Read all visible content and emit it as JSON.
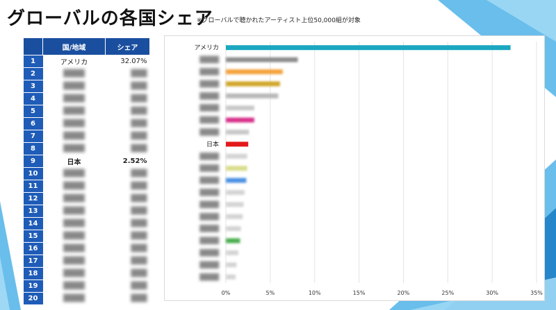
{
  "header": {
    "title": "グローバルの各国シェア",
    "note": "※グローバルで聴かれたアーティスト上位50,000組が対象"
  },
  "table": {
    "headers": [
      "",
      "国/地域",
      "シェア"
    ],
    "rows": [
      {
        "rank": "1",
        "country": "アメリカ",
        "share": "32.07%",
        "visible": true,
        "bold": false
      },
      {
        "rank": "2",
        "country": "",
        "share": "",
        "visible": false
      },
      {
        "rank": "3",
        "country": "",
        "share": "",
        "visible": false
      },
      {
        "rank": "4",
        "country": "",
        "share": "",
        "visible": false
      },
      {
        "rank": "5",
        "country": "",
        "share": "",
        "visible": false
      },
      {
        "rank": "6",
        "country": "",
        "share": "",
        "visible": false
      },
      {
        "rank": "7",
        "country": "",
        "share": "",
        "visible": false
      },
      {
        "rank": "8",
        "country": "",
        "share": "",
        "visible": false
      },
      {
        "rank": "9",
        "country": "日本",
        "share": "2.52%",
        "visible": true,
        "bold": true
      },
      {
        "rank": "10",
        "country": "",
        "share": "",
        "visible": false
      },
      {
        "rank": "11",
        "country": "",
        "share": "",
        "visible": false
      },
      {
        "rank": "12",
        "country": "",
        "share": "",
        "visible": false
      },
      {
        "rank": "13",
        "country": "",
        "share": "",
        "visible": false
      },
      {
        "rank": "14",
        "country": "",
        "share": "",
        "visible": false
      },
      {
        "rank": "15",
        "country": "",
        "share": "",
        "visible": false
      },
      {
        "rank": "16",
        "country": "",
        "share": "",
        "visible": false
      },
      {
        "rank": "17",
        "country": "",
        "share": "",
        "visible": false
      },
      {
        "rank": "18",
        "country": "",
        "share": "",
        "visible": false
      },
      {
        "rank": "19",
        "country": "",
        "share": "",
        "visible": false
      },
      {
        "rank": "20",
        "country": "",
        "share": "",
        "visible": false
      }
    ]
  },
  "chart_data": {
    "type": "bar",
    "orientation": "horizontal",
    "categories": [
      "アメリカ",
      "",
      "",
      "",
      "",
      "",
      "",
      "",
      "日本",
      "",
      "",
      "",
      "",
      "",
      "",
      "",
      "",
      "",
      "",
      ""
    ],
    "category_visible": [
      true,
      false,
      false,
      false,
      false,
      false,
      false,
      false,
      true,
      false,
      false,
      false,
      false,
      false,
      false,
      false,
      false,
      false,
      false,
      false
    ],
    "values": [
      32.07,
      8.1,
      6.4,
      6.1,
      5.9,
      3.2,
      3.2,
      2.6,
      2.52,
      2.4,
      2.4,
      2.3,
      2.1,
      2.0,
      1.9,
      1.7,
      1.6,
      1.4,
      1.2,
      1.1
    ],
    "colors": [
      "#1ba7c0",
      "#8c8c8c",
      "#f4a23a",
      "#d1a528",
      "#b8b8b8",
      "#c8c8c8",
      "#d6308a",
      "#c8c8c8",
      "#e31a1c",
      "#d4d4d4",
      "#d9dc8a",
      "#4a90e2",
      "#d4d4d4",
      "#d4d4d4",
      "#d4d4d4",
      "#d4d4d4",
      "#4caf50",
      "#d4d4d4",
      "#d4d4d4",
      "#d4d4d4"
    ],
    "x_ticks": [
      0,
      5,
      10,
      15,
      20,
      25,
      30,
      35
    ],
    "x_tick_labels": [
      "0%",
      "5%",
      "10%",
      "15%",
      "20%",
      "25%",
      "30%",
      "35%"
    ],
    "xlim": [
      0,
      35
    ],
    "grid": "vertical",
    "title": "",
    "xlabel": "",
    "ylabel": ""
  }
}
